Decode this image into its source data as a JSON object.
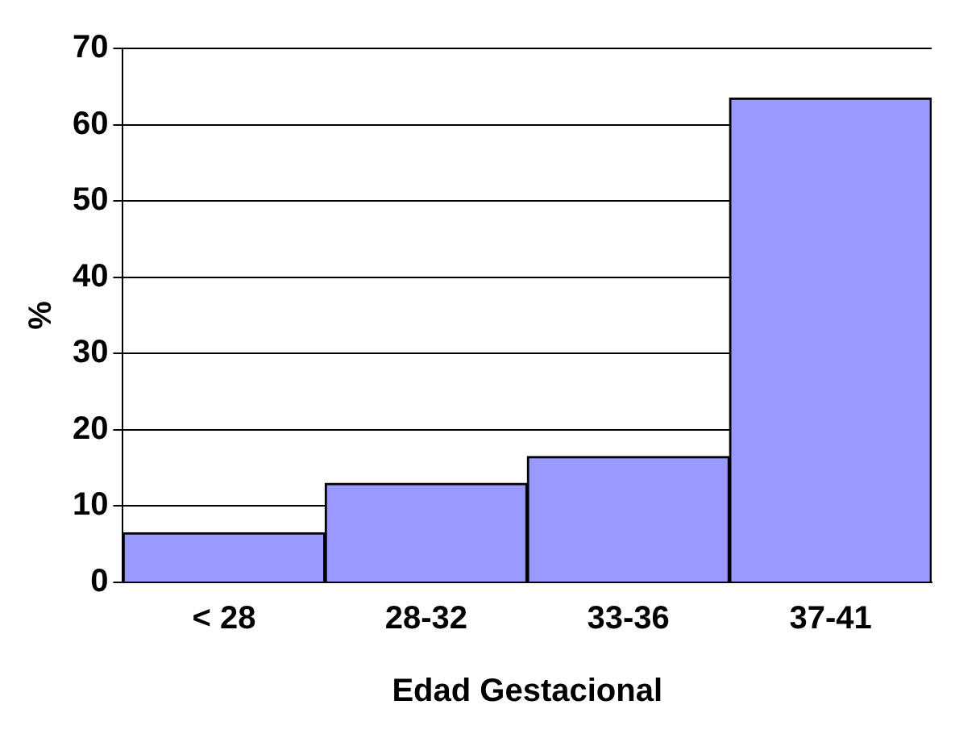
{
  "chart_data": {
    "type": "bar",
    "xlabel": "Edad Gestacional",
    "ylabel": "%",
    "categories": [
      "< 28",
      "28-32",
      "33-36",
      "37-41"
    ],
    "values": [
      6.5,
      13,
      16.5,
      63.5
    ],
    "color": "#9999ff",
    "ylim": [
      0,
      70
    ],
    "yticks": [
      0,
      10,
      20,
      30,
      40,
      50,
      60,
      70
    ],
    "grid": "y",
    "legend": false
  }
}
